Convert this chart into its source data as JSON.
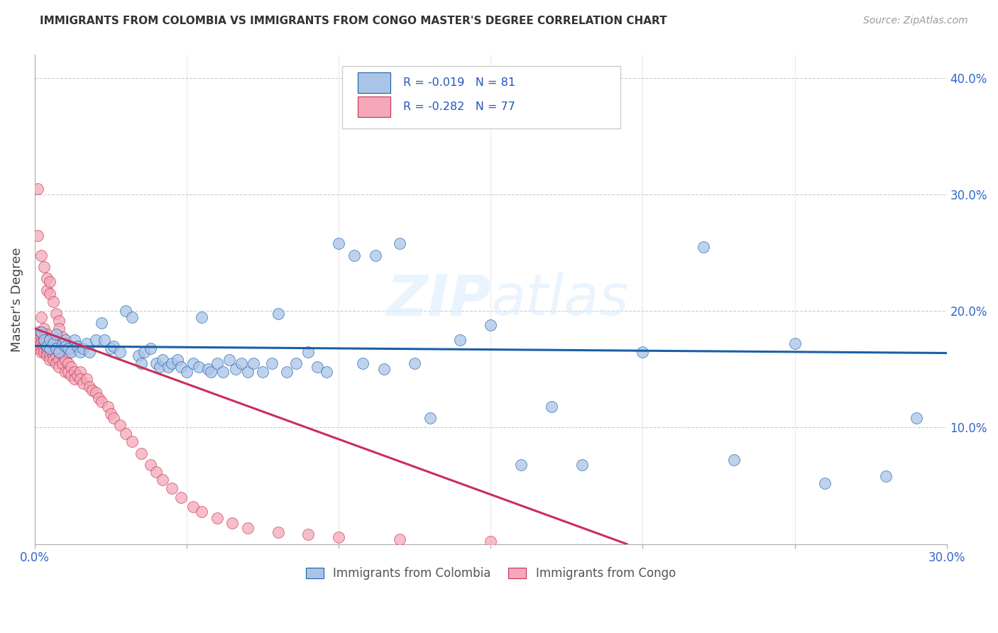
{
  "title": "IMMIGRANTS FROM COLOMBIA VS IMMIGRANTS FROM CONGO MASTER'S DEGREE CORRELATION CHART",
  "source": "Source: ZipAtlas.com",
  "xlabel_colombia": "Immigrants from Colombia",
  "xlabel_congo": "Immigrants from Congo",
  "ylabel": "Master's Degree",
  "xlim": [
    0.0,
    0.3
  ],
  "ylim": [
    0.0,
    0.42
  ],
  "r_colombia": -0.019,
  "n_colombia": 81,
  "r_congo": -0.282,
  "n_congo": 77,
  "color_colombia": "#aac4e8",
  "color_congo": "#f4a8b8",
  "line_color_colombia": "#1a5fa8",
  "line_color_congo": "#c83058",
  "watermark": "ZIPatlas",
  "colombia_x": [
    0.002,
    0.003,
    0.004,
    0.005,
    0.005,
    0.006,
    0.007,
    0.007,
    0.008,
    0.009,
    0.01,
    0.01,
    0.011,
    0.012,
    0.013,
    0.014,
    0.015,
    0.016,
    0.017,
    0.018,
    0.02,
    0.022,
    0.023,
    0.025,
    0.026,
    0.028,
    0.03,
    0.032,
    0.034,
    0.035,
    0.036,
    0.038,
    0.04,
    0.041,
    0.042,
    0.044,
    0.045,
    0.047,
    0.048,
    0.05,
    0.052,
    0.054,
    0.055,
    0.057,
    0.058,
    0.06,
    0.062,
    0.064,
    0.066,
    0.068,
    0.07,
    0.072,
    0.075,
    0.078,
    0.08,
    0.083,
    0.086,
    0.09,
    0.093,
    0.096,
    0.1,
    0.105,
    0.108,
    0.112,
    0.115,
    0.12,
    0.125,
    0.13,
    0.14,
    0.15,
    0.16,
    0.17,
    0.18,
    0.2,
    0.22,
    0.23,
    0.25,
    0.26,
    0.28,
    0.29,
    0.175
  ],
  "colombia_y": [
    0.182,
    0.175,
    0.17,
    0.168,
    0.175,
    0.172,
    0.168,
    0.18,
    0.165,
    0.172,
    0.175,
    0.17,
    0.168,
    0.165,
    0.175,
    0.17,
    0.165,
    0.168,
    0.172,
    0.165,
    0.175,
    0.19,
    0.175,
    0.168,
    0.17,
    0.165,
    0.2,
    0.195,
    0.162,
    0.155,
    0.165,
    0.168,
    0.155,
    0.152,
    0.158,
    0.152,
    0.155,
    0.158,
    0.152,
    0.148,
    0.155,
    0.152,
    0.195,
    0.15,
    0.148,
    0.155,
    0.148,
    0.158,
    0.15,
    0.155,
    0.148,
    0.155,
    0.148,
    0.155,
    0.198,
    0.148,
    0.155,
    0.165,
    0.152,
    0.148,
    0.258,
    0.248,
    0.155,
    0.248,
    0.15,
    0.258,
    0.155,
    0.108,
    0.175,
    0.188,
    0.068,
    0.118,
    0.068,
    0.165,
    0.255,
    0.072,
    0.172,
    0.052,
    0.058,
    0.108,
    0.368
  ],
  "congo_x": [
    0.001,
    0.001,
    0.001,
    0.001,
    0.001,
    0.002,
    0.002,
    0.002,
    0.002,
    0.002,
    0.002,
    0.003,
    0.003,
    0.003,
    0.003,
    0.003,
    0.004,
    0.004,
    0.004,
    0.004,
    0.004,
    0.005,
    0.005,
    0.005,
    0.005,
    0.006,
    0.006,
    0.006,
    0.006,
    0.007,
    0.007,
    0.007,
    0.008,
    0.008,
    0.008,
    0.009,
    0.009,
    0.01,
    0.01,
    0.011,
    0.011,
    0.012,
    0.012,
    0.013,
    0.013,
    0.014,
    0.015,
    0.015,
    0.016,
    0.017,
    0.018,
    0.019,
    0.02,
    0.021,
    0.022,
    0.024,
    0.025,
    0.026,
    0.028,
    0.03,
    0.032,
    0.035,
    0.038,
    0.04,
    0.042,
    0.045,
    0.048,
    0.052,
    0.055,
    0.06,
    0.065,
    0.07,
    0.08,
    0.09,
    0.1,
    0.12,
    0.15
  ],
  "congo_y": [
    0.182,
    0.175,
    0.172,
    0.17,
    0.168,
    0.195,
    0.182,
    0.178,
    0.172,
    0.168,
    0.165,
    0.185,
    0.178,
    0.172,
    0.168,
    0.165,
    0.18,
    0.175,
    0.168,
    0.165,
    0.162,
    0.175,
    0.168,
    0.162,
    0.158,
    0.175,
    0.168,
    0.162,
    0.158,
    0.168,
    0.162,
    0.155,
    0.165,
    0.158,
    0.152,
    0.162,
    0.155,
    0.158,
    0.148,
    0.155,
    0.148,
    0.152,
    0.145,
    0.148,
    0.142,
    0.145,
    0.148,
    0.142,
    0.138,
    0.142,
    0.135,
    0.132,
    0.13,
    0.125,
    0.122,
    0.118,
    0.112,
    0.108,
    0.102,
    0.095,
    0.088,
    0.078,
    0.068,
    0.062,
    0.055,
    0.048,
    0.04,
    0.032,
    0.028,
    0.022,
    0.018,
    0.014,
    0.01,
    0.008,
    0.006,
    0.004,
    0.002
  ],
  "congo_extra_x": [
    0.001,
    0.001,
    0.002,
    0.003,
    0.004,
    0.004,
    0.005,
    0.005,
    0.006,
    0.007,
    0.008,
    0.008,
    0.009,
    0.01,
    0.011
  ],
  "congo_extra_y": [
    0.305,
    0.265,
    0.248,
    0.238,
    0.228,
    0.218,
    0.225,
    0.215,
    0.208,
    0.198,
    0.192,
    0.185,
    0.178,
    0.172,
    0.165
  ]
}
